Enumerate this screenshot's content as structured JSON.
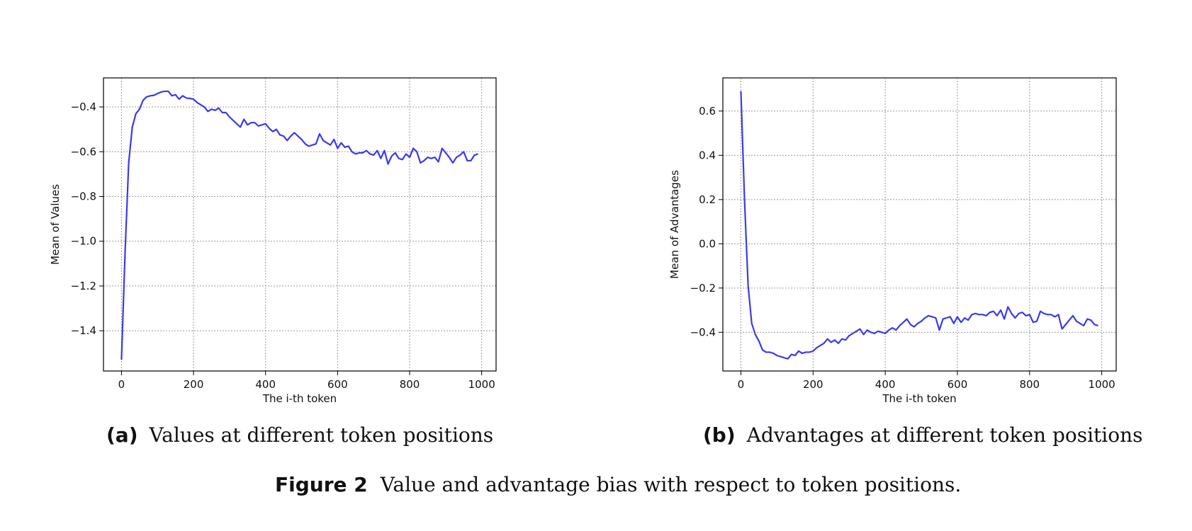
{
  "colors": {
    "line": "#3b3be6",
    "grid": "#9a9a9a",
    "axis": "#000000"
  },
  "figure": {
    "label": "Figure 2",
    "text": "Value and advantage bias with respect to token positions."
  },
  "panels": [
    {
      "label": "(a)",
      "caption": "Values at different token positions"
    },
    {
      "label": "(b)",
      "caption": "Advantages at different token positions"
    }
  ],
  "chart_data": [
    {
      "type": "line",
      "xlabel": "The i-th token",
      "ylabel": "Mean of Values",
      "xlim": [
        -50,
        1040
      ],
      "ylim": [
        -1.58,
        -0.27
      ],
      "xticks": [
        0,
        200,
        400,
        600,
        800,
        1000
      ],
      "xtick_labels": [
        "0",
        "200",
        "400",
        "600",
        "800",
        "1000"
      ],
      "yticks": [
        -1.4,
        -1.2,
        -1.0,
        -0.8,
        -0.6,
        -0.4
      ],
      "ytick_labels": [
        "−1.4",
        "−1.2",
        "−1.0",
        "−0.8",
        "−0.6",
        "−0.4"
      ],
      "grid": true,
      "series": [
        {
          "x": [
            0,
            10,
            20,
            30,
            40,
            50,
            60,
            70,
            80,
            90,
            100,
            110,
            120,
            130,
            140,
            150,
            160,
            170,
            180,
            190,
            200,
            210,
            220,
            230,
            240,
            250,
            260,
            270,
            280,
            290,
            300,
            310,
            320,
            330,
            340,
            350,
            360,
            370,
            380,
            390,
            400,
            410,
            420,
            430,
            440,
            450,
            460,
            470,
            480,
            490,
            500,
            510,
            520,
            530,
            540,
            550,
            560,
            570,
            580,
            590,
            600,
            610,
            620,
            630,
            640,
            650,
            660,
            670,
            680,
            690,
            700,
            710,
            720,
            730,
            740,
            750,
            760,
            770,
            780,
            790,
            800,
            810,
            820,
            830,
            840,
            850,
            860,
            870,
            880,
            890,
            900,
            910,
            920,
            930,
            940,
            950,
            960,
            970,
            980,
            990
          ],
          "y": [
            -1.53,
            -1.05,
            -0.65,
            -0.49,
            -0.43,
            -0.41,
            -0.37,
            -0.355,
            -0.35,
            -0.348,
            -0.34,
            -0.333,
            -0.33,
            -0.33,
            -0.35,
            -0.345,
            -0.365,
            -0.35,
            -0.36,
            -0.362,
            -0.365,
            -0.38,
            -0.39,
            -0.4,
            -0.42,
            -0.41,
            -0.415,
            -0.405,
            -0.425,
            -0.425,
            -0.445,
            -0.46,
            -0.475,
            -0.49,
            -0.455,
            -0.48,
            -0.47,
            -0.47,
            -0.485,
            -0.48,
            -0.475,
            -0.495,
            -0.51,
            -0.5,
            -0.525,
            -0.53,
            -0.55,
            -0.53,
            -0.515,
            -0.53,
            -0.545,
            -0.565,
            -0.575,
            -0.57,
            -0.565,
            -0.52,
            -0.55,
            -0.56,
            -0.57,
            -0.545,
            -0.585,
            -0.56,
            -0.58,
            -0.575,
            -0.6,
            -0.61,
            -0.605,
            -0.605,
            -0.595,
            -0.61,
            -0.615,
            -0.595,
            -0.63,
            -0.595,
            -0.655,
            -0.62,
            -0.605,
            -0.63,
            -0.635,
            -0.61,
            -0.625,
            -0.585,
            -0.6,
            -0.65,
            -0.64,
            -0.625,
            -0.63,
            -0.625,
            -0.645,
            -0.585,
            -0.605,
            -0.625,
            -0.65,
            -0.625,
            -0.615,
            -0.6,
            -0.64,
            -0.64,
            -0.615,
            -0.61
          ]
        }
      ]
    },
    {
      "type": "line",
      "xlabel": "The i-th token",
      "ylabel": "Mean of Advantages",
      "xlim": [
        -50,
        1040
      ],
      "ylim": [
        -0.575,
        0.75
      ],
      "xticks": [
        0,
        200,
        400,
        600,
        800,
        1000
      ],
      "xtick_labels": [
        "0",
        "200",
        "400",
        "600",
        "800",
        "1000"
      ],
      "yticks": [
        -0.4,
        -0.2,
        0.0,
        0.2,
        0.4,
        0.6
      ],
      "ytick_labels": [
        "−0.4",
        "−0.2",
        "0.0",
        "0.2",
        "0.4",
        "0.6"
      ],
      "grid": true,
      "series": [
        {
          "x": [
            0,
            10,
            20,
            30,
            40,
            50,
            60,
            70,
            80,
            90,
            100,
            110,
            120,
            130,
            140,
            150,
            160,
            170,
            180,
            190,
            200,
            210,
            220,
            230,
            240,
            250,
            260,
            270,
            280,
            290,
            300,
            310,
            320,
            330,
            340,
            350,
            360,
            370,
            380,
            390,
            400,
            410,
            420,
            430,
            440,
            450,
            460,
            470,
            480,
            490,
            500,
            510,
            520,
            530,
            540,
            550,
            560,
            570,
            580,
            590,
            600,
            610,
            620,
            630,
            640,
            650,
            660,
            670,
            680,
            690,
            700,
            710,
            720,
            730,
            740,
            750,
            760,
            770,
            780,
            790,
            800,
            810,
            820,
            830,
            840,
            850,
            860,
            870,
            880,
            890,
            900,
            910,
            920,
            930,
            940,
            950,
            960,
            970,
            980,
            990
          ],
          "y": [
            0.69,
            0.2,
            -0.19,
            -0.36,
            -0.41,
            -0.44,
            -0.48,
            -0.49,
            -0.49,
            -0.495,
            -0.505,
            -0.51,
            -0.515,
            -0.52,
            -0.5,
            -0.505,
            -0.485,
            -0.495,
            -0.49,
            -0.49,
            -0.485,
            -0.47,
            -0.46,
            -0.45,
            -0.43,
            -0.445,
            -0.435,
            -0.45,
            -0.43,
            -0.435,
            -0.415,
            -0.405,
            -0.395,
            -0.385,
            -0.41,
            -0.39,
            -0.4,
            -0.405,
            -0.395,
            -0.4,
            -0.405,
            -0.39,
            -0.38,
            -0.39,
            -0.37,
            -0.355,
            -0.34,
            -0.365,
            -0.375,
            -0.36,
            -0.35,
            -0.335,
            -0.325,
            -0.33,
            -0.335,
            -0.39,
            -0.34,
            -0.335,
            -0.33,
            -0.36,
            -0.33,
            -0.355,
            -0.335,
            -0.345,
            -0.32,
            -0.315,
            -0.32,
            -0.32,
            -0.325,
            -0.31,
            -0.305,
            -0.325,
            -0.3,
            -0.34,
            -0.285,
            -0.315,
            -0.335,
            -0.315,
            -0.31,
            -0.325,
            -0.32,
            -0.355,
            -0.35,
            -0.305,
            -0.315,
            -0.32,
            -0.32,
            -0.33,
            -0.32,
            -0.385,
            -0.365,
            -0.345,
            -0.325,
            -0.35,
            -0.36,
            -0.37,
            -0.34,
            -0.345,
            -0.365,
            -0.37
          ]
        }
      ]
    }
  ]
}
